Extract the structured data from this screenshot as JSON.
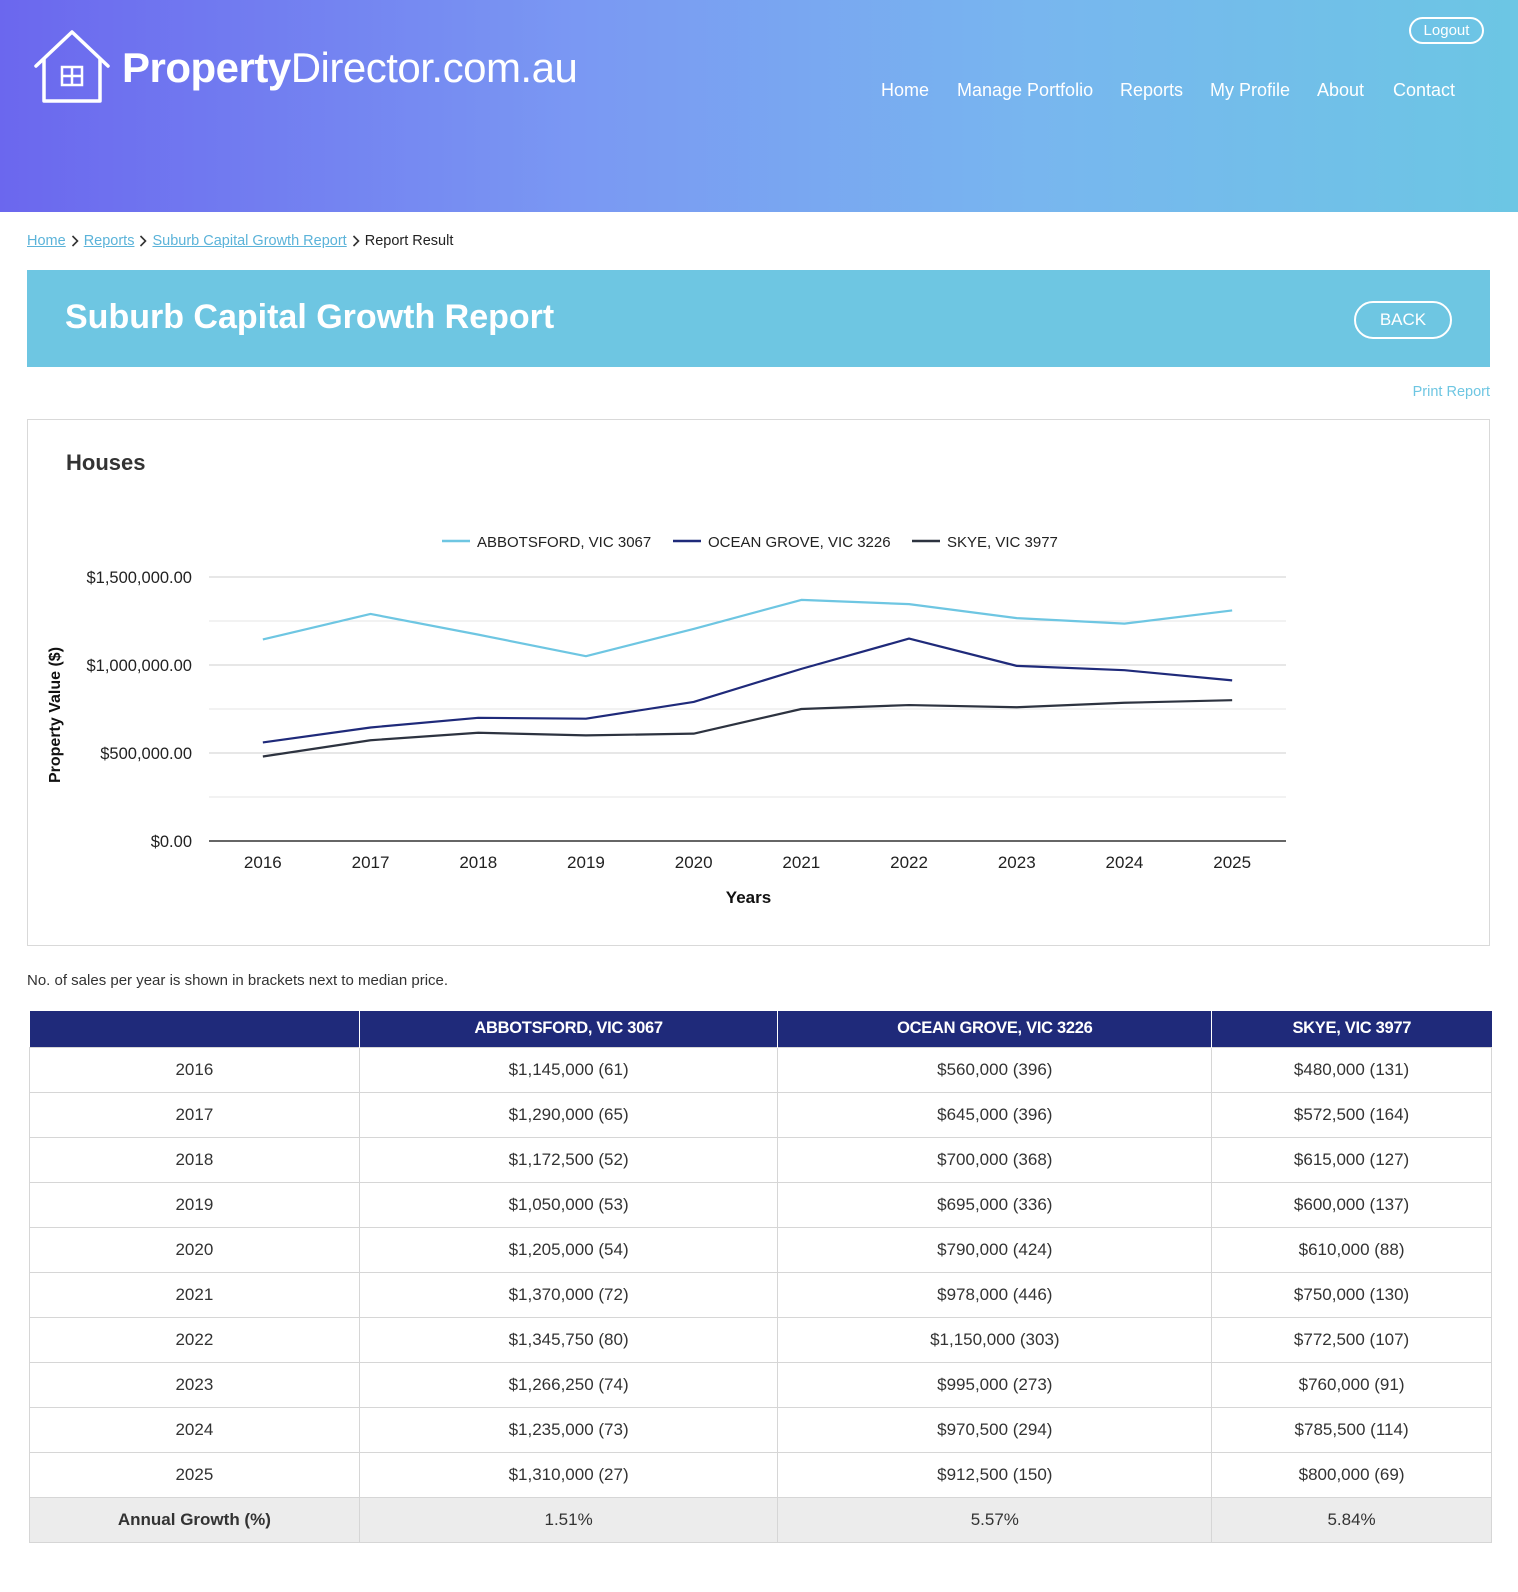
{
  "header": {
    "logo_bold": "Property",
    "logo_rest": "Director.com.au",
    "logout_label": "Logout",
    "nav": [
      "Home",
      "Manage Portfolio",
      "Reports",
      "My Profile",
      "About",
      "Contact"
    ]
  },
  "breadcrumb": {
    "items": [
      "Home",
      "Reports",
      "Suburb Capital Growth Report"
    ],
    "current": "Report Result"
  },
  "report": {
    "title": "Suburb Capital Growth Report",
    "back_label": "BACK",
    "print_label": "Print Report",
    "note": "No. of sales per year is shown in brackets next to median price."
  },
  "chart": {
    "heading": "Houses"
  },
  "chart_data": {
    "type": "line",
    "title": "Houses",
    "xlabel": "Years",
    "ylabel": "Property Value ($)",
    "x": [
      "2016",
      "2017",
      "2018",
      "2019",
      "2020",
      "2021",
      "2022",
      "2023",
      "2024",
      "2025"
    ],
    "ylim": [
      0,
      1500000
    ],
    "yticks": [
      "$0.00",
      "$500,000.00",
      "$1,000,000.00",
      "$1,500,000.00"
    ],
    "grid": true,
    "legend_position": "top",
    "series": [
      {
        "name": "ABBOTSFORD, VIC 3067",
        "color": "#6ec6e2",
        "values": [
          1145000,
          1290000,
          1172500,
          1050000,
          1205000,
          1370000,
          1345750,
          1266250,
          1235000,
          1310000
        ]
      },
      {
        "name": "OCEAN GROVE, VIC 3226",
        "color": "#1f2a7a",
        "values": [
          560000,
          645000,
          700000,
          695000,
          790000,
          978000,
          1150000,
          995000,
          970500,
          912500
        ]
      },
      {
        "name": "SKYE, VIC 3977",
        "color": "#2d3340",
        "values": [
          480000,
          572500,
          615000,
          600000,
          610000,
          750000,
          772500,
          760000,
          785500,
          800000
        ]
      }
    ]
  },
  "table": {
    "headers": [
      "",
      "ABBOTSFORD, VIC 3067",
      "OCEAN GROVE, VIC 3226",
      "SKYE, VIC 3977"
    ],
    "rows": [
      [
        "2016",
        "$1,145,000 (61)",
        "$560,000 (396)",
        "$480,000 (131)"
      ],
      [
        "2017",
        "$1,290,000 (65)",
        "$645,000 (396)",
        "$572,500 (164)"
      ],
      [
        "2018",
        "$1,172,500 (52)",
        "$700,000 (368)",
        "$615,000 (127)"
      ],
      [
        "2019",
        "$1,050,000 (53)",
        "$695,000 (336)",
        "$600,000 (137)"
      ],
      [
        "2020",
        "$1,205,000 (54)",
        "$790,000 (424)",
        "$610,000 (88)"
      ],
      [
        "2021",
        "$1,370,000 (72)",
        "$978,000 (446)",
        "$750,000 (130)"
      ],
      [
        "2022",
        "$1,345,750 (80)",
        "$1,150,000 (303)",
        "$772,500 (107)"
      ],
      [
        "2023",
        "$1,266,250 (74)",
        "$995,000 (273)",
        "$760,000 (91)"
      ],
      [
        "2024",
        "$1,235,000 (73)",
        "$970,500 (294)",
        "$785,500 (114)"
      ],
      [
        "2025",
        "$1,310,000 (27)",
        "$912,500 (150)",
        "$800,000 (69)"
      ]
    ],
    "growth": [
      "Annual Growth (%)",
      "1.51%",
      "5.57%",
      "5.84%"
    ]
  }
}
